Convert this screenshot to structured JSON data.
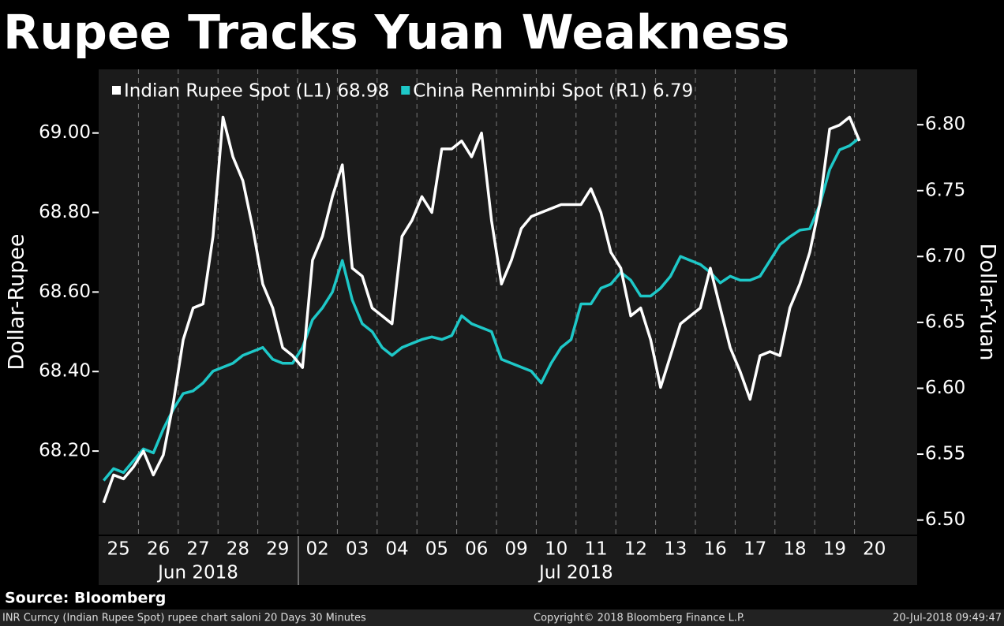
{
  "chart_data": {
    "type": "line",
    "title": "Rupee Tracks Yuan Weakness",
    "y_label": "Dollar-Rupee",
    "y2_label": "Dollar-Yuan",
    "categories": [
      "25",
      null,
      null,
      null,
      "26",
      null,
      null,
      null,
      "27",
      null,
      null,
      null,
      "28",
      null,
      null,
      null,
      "29",
      null,
      null,
      null,
      "02",
      null,
      null,
      null,
      "03",
      null,
      null,
      null,
      "04",
      null,
      null,
      null,
      "05",
      null,
      null,
      null,
      "06",
      null,
      null,
      null,
      "09",
      null,
      null,
      null,
      "10",
      null,
      null,
      null,
      "11",
      null,
      null,
      null,
      "12",
      null,
      null,
      null,
      "13",
      null,
      null,
      null,
      "16",
      null,
      null,
      null,
      "17",
      null,
      null,
      null,
      "18",
      null,
      null,
      null,
      "19",
      null,
      null,
      null,
      "20",
      null,
      null,
      null
    ],
    "groups": [
      "Jun 2018",
      "Jul 2018"
    ],
    "series": [
      {
        "name": "Indian Rupee Spot (L1) 68.98",
        "color": "#ffffff",
        "axis": "y",
        "values": [
          68.07,
          68.14,
          68.13,
          68.16,
          68.2,
          68.14,
          68.19,
          68.32,
          68.48,
          68.56,
          68.57,
          68.74,
          69.04,
          68.94,
          68.88,
          68.76,
          68.62,
          68.56,
          68.46,
          68.44,
          68.41,
          68.68,
          68.74,
          68.84,
          68.92,
          68.66,
          68.64,
          68.56,
          68.54,
          68.52,
          68.74,
          68.78,
          68.84,
          68.8,
          68.96,
          68.96,
          68.98,
          68.94,
          69.0,
          68.78,
          68.62,
          68.68,
          68.76,
          68.79,
          68.8,
          68.81,
          68.82,
          68.82,
          68.82,
          68.86,
          68.8,
          68.7,
          68.66,
          68.54,
          68.56,
          68.48,
          68.36,
          68.44,
          68.52,
          68.54,
          68.56,
          68.66,
          68.56,
          68.46,
          68.4,
          68.33,
          68.44,
          68.45,
          68.44,
          68.56,
          68.62,
          68.7,
          68.82,
          69.01,
          69.02,
          69.04,
          68.98,
          null,
          null,
          null
        ]
      },
      {
        "name": "China Renminbi Spot (R1) 6.79",
        "color": "#1ec8c8",
        "axis": "y2",
        "values": [
          6.53,
          6.539,
          6.536,
          6.545,
          6.554,
          6.551,
          6.569,
          6.584,
          6.596,
          6.598,
          6.604,
          6.613,
          6.616,
          6.619,
          6.625,
          6.628,
          6.631,
          6.622,
          6.619,
          6.619,
          6.631,
          6.652,
          6.661,
          6.673,
          6.697,
          6.667,
          6.649,
          6.643,
          6.631,
          6.625,
          6.631,
          6.634,
          6.637,
          6.639,
          6.637,
          6.64,
          6.655,
          6.649,
          6.646,
          6.643,
          6.622,
          6.619,
          6.616,
          6.613,
          6.604,
          6.619,
          6.631,
          6.637,
          6.664,
          6.664,
          6.676,
          6.679,
          6.688,
          6.682,
          6.67,
          6.67,
          6.676,
          6.685,
          6.7,
          6.697,
          6.694,
          6.688,
          6.68,
          6.685,
          6.682,
          6.682,
          6.685,
          6.697,
          6.709,
          6.715,
          6.72,
          6.721,
          6.739,
          6.766,
          6.781,
          6.784,
          6.79,
          null,
          null,
          null
        ]
      }
    ],
    "ylim": [
      67.99,
      69.16
    ],
    "yticks": [
      {
        "value": 68.2,
        "label": "68.20"
      },
      {
        "value": 68.4,
        "label": "68.40"
      },
      {
        "value": 68.6,
        "label": "68.60"
      },
      {
        "value": 68.8,
        "label": "68.80"
      },
      {
        "value": 69.0,
        "label": "69.00"
      }
    ],
    "y2lim": [
      6.489,
      6.842
    ],
    "y2ticks": [
      {
        "value": 6.5,
        "label": "6.50"
      },
      6.55,
      {
        "value": 6.6,
        "label": "6.60"
      },
      6.65,
      {
        "value": 6.7,
        "label": "6.70"
      },
      6.75,
      {
        "value": 6.8,
        "label": "6.80"
      }
    ],
    "source": "Source: Bloomberg",
    "footer": {
      "left": "INR Curncy (Indian Rupee Spot) rupee chart saloni 20 Days 30 Minutes",
      "center": "Copyright© 2018 Bloomberg Finance L.P.",
      "right": "20-Jul-2018 09:49:47"
    }
  }
}
